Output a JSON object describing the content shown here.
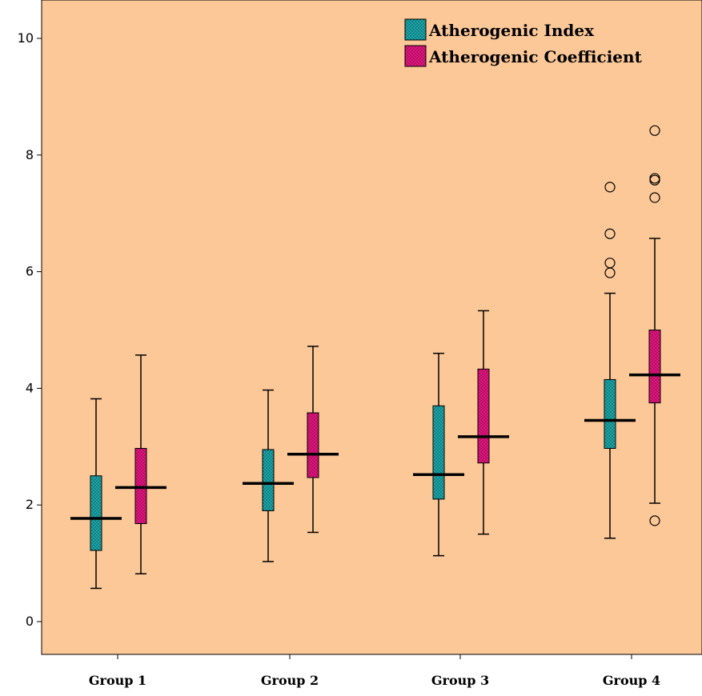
{
  "chart_data": {
    "type": "box",
    "categories": [
      "Group 1",
      "Group 2",
      "Group 3",
      "Group 4"
    ],
    "ylim": [
      0,
      10
    ],
    "yticks": [
      "0",
      "2",
      "4",
      "6",
      "8",
      "10"
    ],
    "background_color": "#FCC898",
    "legend_position": "top-right",
    "grid": false,
    "series": [
      {
        "name": "Atherogenic Index",
        "color": "#1BA3A6",
        "boxes": [
          {
            "min": 0.57,
            "q1": 1.22,
            "median": 1.77,
            "q3": 2.5,
            "max": 3.82,
            "outliers": []
          },
          {
            "min": 1.03,
            "q1": 1.9,
            "median": 2.37,
            "q3": 2.95,
            "max": 3.97,
            "outliers": []
          },
          {
            "min": 1.13,
            "q1": 2.1,
            "median": 2.52,
            "q3": 3.7,
            "max": 4.6,
            "outliers": []
          },
          {
            "min": 1.43,
            "q1": 2.97,
            "median": 3.45,
            "q3": 4.15,
            "max": 5.63,
            "outliers": [
              5.98,
              6.15,
              6.65,
              7.45
            ]
          }
        ]
      },
      {
        "name": "Atherogenic Coefficient",
        "color": "#E0157E",
        "boxes": [
          {
            "min": 0.82,
            "q1": 1.68,
            "median": 2.3,
            "q3": 2.97,
            "max": 4.57,
            "outliers": []
          },
          {
            "min": 1.53,
            "q1": 2.47,
            "median": 2.87,
            "q3": 3.58,
            "max": 4.72,
            "outliers": []
          },
          {
            "min": 1.5,
            "q1": 2.72,
            "median": 3.17,
            "q3": 4.33,
            "max": 5.33,
            "outliers": []
          },
          {
            "min": 2.03,
            "q1": 3.75,
            "median": 4.23,
            "q3": 5.0,
            "max": 6.57,
            "outliers": [
              1.73,
              7.27,
              7.57,
              7.6,
              8.42
            ]
          }
        ]
      }
    ]
  }
}
